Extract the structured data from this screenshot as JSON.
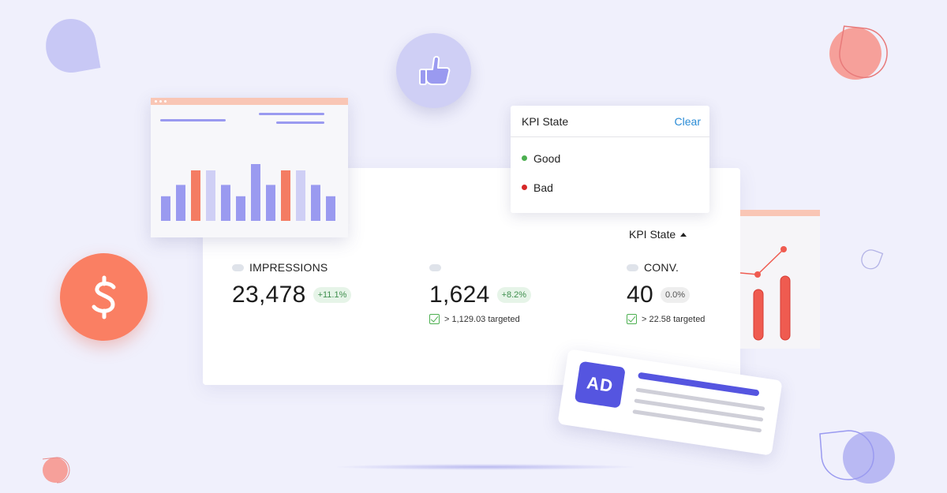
{
  "colors": {
    "background": "#f0f0fc",
    "accent_purple": "#9a9af0",
    "accent_coral": "#f47c63",
    "good": "#4caf50",
    "bad": "#d62828",
    "link": "#2b8cd6"
  },
  "dashboard": {
    "kpi_toggle_label": "KPI State",
    "metrics": [
      {
        "label": "IMPRESSIONS",
        "icon": "pill-icon",
        "value": "23,478",
        "delta": "+11.1%",
        "target": ""
      },
      {
        "label": "",
        "icon": "pill-icon",
        "value": "1,624",
        "delta": "+8.2%",
        "target": "> 1,129.03 targeted"
      },
      {
        "label": "CONV.",
        "icon": "pill-icon",
        "value": "40",
        "delta": "0.0%",
        "target": "> 22.58 targeted"
      }
    ]
  },
  "kpi_dropdown": {
    "title": "KPI State",
    "clear_label": "Clear",
    "options": [
      {
        "label": "Good",
        "color": "#4caf50"
      },
      {
        "label": "Bad",
        "color": "#d62828"
      }
    ]
  },
  "bar_illustration": {
    "bars": [
      {
        "level": 0.39,
        "color": "#9a9af0"
      },
      {
        "level": 0.57,
        "color": "#9a9af0"
      },
      {
        "level": 0.8,
        "color": "#f47c63"
      },
      {
        "level": 0.8,
        "color": "#cfcff5"
      },
      {
        "level": 0.57,
        "color": "#9a9af0"
      },
      {
        "level": 0.39,
        "color": "#9a9af0"
      },
      {
        "level": 0.9,
        "color": "#9a9af0"
      },
      {
        "level": 0.57,
        "color": "#9a9af0"
      },
      {
        "level": 0.8,
        "color": "#f47c63"
      },
      {
        "level": 0.8,
        "color": "#cfcff5"
      },
      {
        "level": 0.57,
        "color": "#9a9af0"
      },
      {
        "level": 0.39,
        "color": "#9a9af0"
      }
    ]
  },
  "ad_card": {
    "badge_text": "AD"
  },
  "icons": [
    "dollar-icon",
    "thumbs-up-icon",
    "check-icon",
    "caret-up-icon"
  ]
}
